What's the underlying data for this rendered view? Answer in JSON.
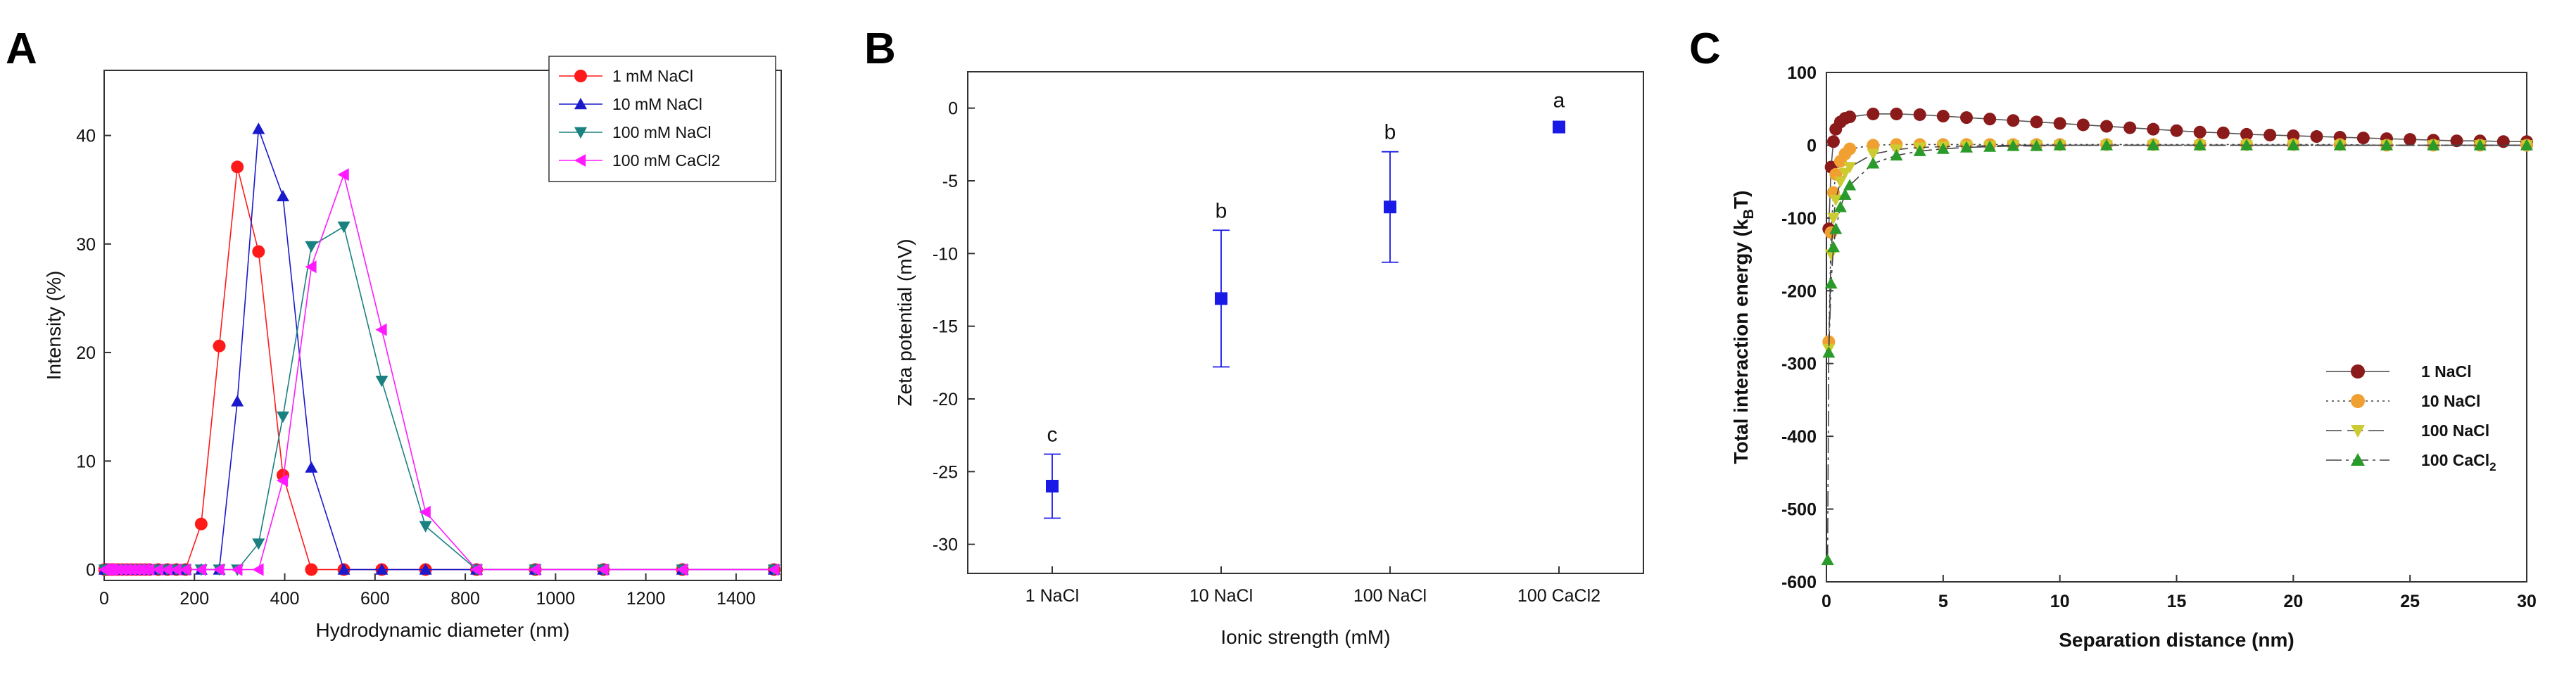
{
  "chart_data": [
    {
      "panel": "A",
      "type": "line",
      "title": "",
      "xlabel": "Hydrodynamic diameter (nm)",
      "ylabel": "Intensity (%)",
      "xlim": [
        0,
        1500
      ],
      "ylim": [
        -1,
        46
      ],
      "xticks": [
        0,
        200,
        400,
        600,
        800,
        1000,
        1200,
        1400
      ],
      "yticks": [
        0,
        10,
        20,
        30,
        40
      ],
      "legend_position": "top-right",
      "series": [
        {
          "name": "1 mM NaCl",
          "color": "#ff1a1a",
          "marker": "circle",
          "x": [
            1,
            5,
            10,
            15,
            20,
            30,
            40,
            50,
            60,
            70,
            80,
            90,
            100,
            120,
            140,
            160,
            180,
            215,
            255,
            295,
            342,
            396,
            459,
            531,
            615,
            712,
            825,
            955,
            1106,
            1281,
            1484
          ],
          "y": [
            0,
            0,
            0,
            0,
            0,
            0,
            0,
            0,
            0,
            0,
            0,
            0,
            0,
            0,
            0,
            0,
            0,
            4.2,
            20.6,
            37.1,
            29.3,
            8.7,
            0,
            0,
            0,
            0,
            0,
            0,
            0,
            0,
            0
          ]
        },
        {
          "name": "10 mM NaCl",
          "color": "#1a1acc",
          "marker": "triangle-up",
          "x": [
            1,
            5,
            10,
            15,
            20,
            30,
            40,
            50,
            60,
            70,
            80,
            90,
            100,
            120,
            140,
            160,
            180,
            215,
            255,
            295,
            342,
            396,
            459,
            531,
            615,
            712,
            825,
            955,
            1106,
            1281,
            1484
          ],
          "y": [
            0,
            0,
            0,
            0,
            0,
            0,
            0,
            0,
            0,
            0,
            0,
            0,
            0,
            0,
            0,
            0,
            0,
            0,
            0,
            15.5,
            40.6,
            34.4,
            9.4,
            0,
            0,
            0,
            0,
            0,
            0,
            0,
            0
          ]
        },
        {
          "name": "100 mM NaCl",
          "color": "#1a8080",
          "marker": "triangle-down",
          "x": [
            1,
            5,
            10,
            15,
            20,
            30,
            40,
            50,
            60,
            70,
            80,
            90,
            100,
            120,
            140,
            160,
            180,
            215,
            255,
            295,
            342,
            396,
            459,
            531,
            615,
            712,
            825,
            955,
            1106,
            1281,
            1484
          ],
          "y": [
            0,
            0,
            0,
            0,
            0,
            0,
            0,
            0,
            0,
            0,
            0,
            0,
            0,
            0,
            0,
            0,
            0,
            0,
            0,
            0,
            2.4,
            14.1,
            29.8,
            31.6,
            17.4,
            4.0,
            0,
            0,
            0,
            0,
            0
          ]
        },
        {
          "name": "100 mM CaCl2",
          "color": "#ff1aff",
          "marker": "triangle-left",
          "x": [
            1,
            5,
            10,
            15,
            20,
            30,
            40,
            50,
            60,
            70,
            80,
            90,
            100,
            120,
            140,
            160,
            180,
            215,
            255,
            295,
            342,
            396,
            459,
            531,
            615,
            712,
            825,
            955,
            1106,
            1281,
            1484
          ],
          "y": [
            0,
            0,
            0,
            0,
            0,
            0,
            0,
            0,
            0,
            0,
            0,
            0,
            0,
            0,
            0,
            0,
            0,
            0,
            0,
            0,
            0,
            8.2,
            27.9,
            36.4,
            22.1,
            5.3,
            0,
            0,
            0,
            0,
            0
          ]
        }
      ]
    },
    {
      "panel": "B",
      "type": "scatter",
      "title": "",
      "xlabel": "Ionic strength (mM)",
      "ylabel": "Zeta potential (mV)",
      "categories": [
        "1 NaCl",
        "10 NaCl",
        "100 NaCl",
        "100 CaCl2"
      ],
      "ylim": [
        -32,
        2.5
      ],
      "yticks": [
        0,
        -5,
        -10,
        -15,
        -20,
        -25,
        -30
      ],
      "color": "#1a1ae6",
      "values": [
        -26.0,
        -13.1,
        -6.8,
        -1.3
      ],
      "errors": [
        2.2,
        4.7,
        3.8,
        0
      ],
      "annotations": [
        "c",
        "b",
        "b",
        "a"
      ]
    },
    {
      "panel": "C",
      "type": "line",
      "title": "",
      "xlabel": "Separation distance (nm)",
      "ylabel_main": "Total interaction energy (k",
      "ylabel_sub": "B",
      "ylabel_tail": "T)",
      "xlim": [
        0,
        30
      ],
      "ylim": [
        -600,
        100
      ],
      "xticks": [
        0,
        5,
        10,
        15,
        20,
        25,
        30
      ],
      "yticks": [
        100,
        0,
        -100,
        -200,
        -300,
        -400,
        -500,
        -600
      ],
      "legend_position": "right",
      "series": [
        {
          "name": "1 NaCl",
          "name_sub": "",
          "color": "#8b1a1a",
          "dash": "",
          "x": [
            0.1,
            0.2,
            0.3,
            0.4,
            0.6,
            0.8,
            1.0,
            2.0,
            3.0,
            4.0,
            5.0,
            6.0,
            7.0,
            8.0,
            9.0,
            10,
            11,
            12,
            13,
            14,
            15,
            16,
            17,
            18,
            19,
            20,
            21,
            22,
            23,
            24,
            25,
            26,
            27,
            28,
            29,
            30
          ],
          "y": [
            -115,
            -30,
            5,
            22,
            32,
            37,
            39,
            43,
            43,
            42,
            40,
            38,
            36,
            34,
            32,
            30,
            28,
            26,
            24,
            22,
            20,
            18,
            17,
            15,
            14,
            13,
            12,
            11,
            10,
            9,
            8,
            7,
            6,
            6,
            5,
            5
          ]
        },
        {
          "name": "10 NaCl",
          "name_sub": "",
          "color": "#f0a030",
          "dash": "3,5",
          "x": [
            0.1,
            0.2,
            0.3,
            0.4,
            0.6,
            0.8,
            1.0,
            2.0,
            3.0,
            4.0,
            5.0,
            6.0,
            7.0,
            8.0,
            9.0,
            10,
            12,
            14,
            16,
            18,
            20,
            22,
            24,
            26,
            28,
            30
          ],
          "y": [
            -270,
            -120,
            -65,
            -40,
            -22,
            -12,
            -5,
            0,
            1,
            1,
            1,
            1,
            1,
            1,
            1,
            1,
            1,
            1,
            1,
            1,
            1,
            1,
            0,
            0,
            0,
            0
          ]
        },
        {
          "name": "100 NaCl",
          "name_sub": "",
          "color": "#cccc30",
          "dash": "22,8",
          "x": [
            0.1,
            0.2,
            0.3,
            0.4,
            0.6,
            0.8,
            1.0,
            2.0,
            3.0,
            4.0,
            5.0,
            6.0,
            7.0,
            8.0,
            9.0,
            10,
            12,
            14,
            16,
            18,
            20,
            22,
            24,
            26,
            28,
            30
          ],
          "y": [
            -280,
            -150,
            -100,
            -75,
            -50,
            -38,
            -30,
            -12,
            -6,
            -3,
            -2,
            -1,
            -1,
            0,
            0,
            0,
            0,
            0,
            0,
            0,
            0,
            0,
            0,
            0,
            0,
            0
          ]
        },
        {
          "name": "100 CaCl",
          "name_sub": "2",
          "color": "#2a9a2a",
          "dash": "22,6,4,6",
          "x": [
            0.05,
            0.1,
            0.2,
            0.3,
            0.4,
            0.6,
            0.8,
            1.0,
            2.0,
            3.0,
            4.0,
            5.0,
            6.0,
            7.0,
            8.0,
            9.0,
            10,
            12,
            14,
            16,
            18,
            20,
            22,
            24,
            26,
            28,
            30
          ],
          "y": [
            -570,
            -285,
            -190,
            -140,
            -115,
            -85,
            -68,
            -55,
            -25,
            -14,
            -8,
            -5,
            -3,
            -2,
            -1,
            -1,
            0,
            0,
            0,
            0,
            0,
            0,
            0,
            0,
            0,
            0,
            0
          ]
        }
      ]
    }
  ]
}
